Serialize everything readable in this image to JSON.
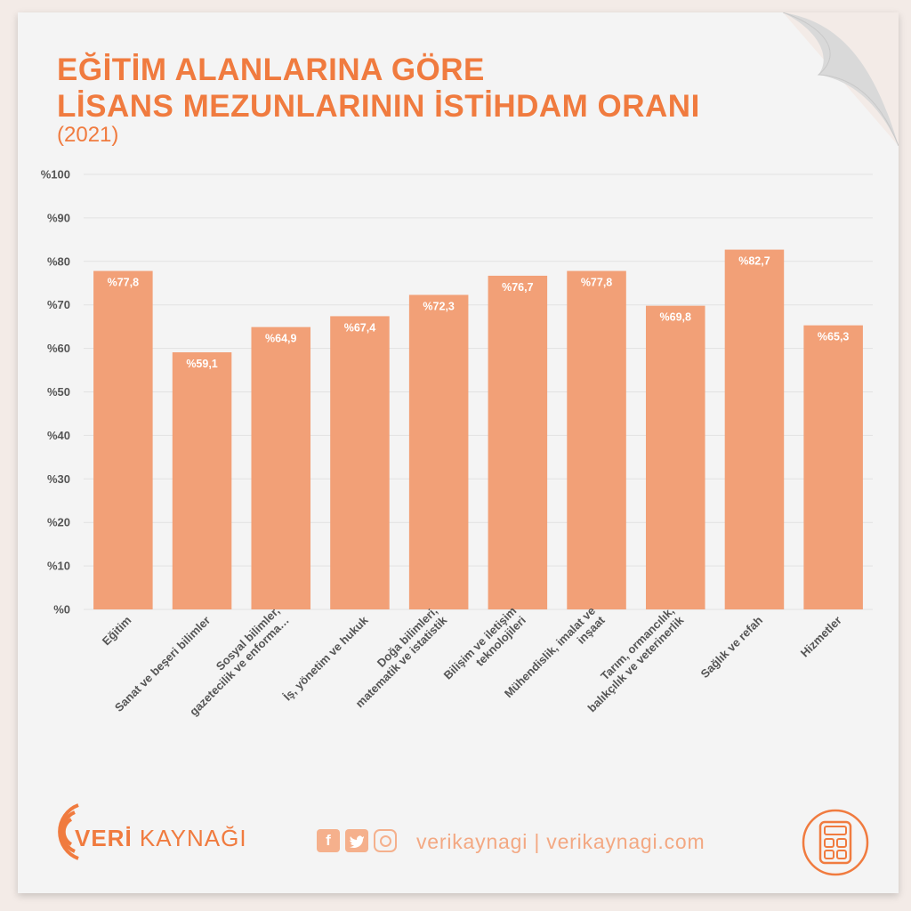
{
  "header": {
    "title_line1": "EĞİTİM ALANLARINA GÖRE",
    "title_line2": "LİSANS MEZUNLARININ İSTİHDAM ORANI",
    "subtitle": "(2021)"
  },
  "colors": {
    "accent": "#f07b3f",
    "bar": "#f2a077",
    "bar_label": "#ffffff",
    "axis_text": "#555555",
    "grid": "#e2e2e2"
  },
  "chart_data": {
    "type": "bar",
    "categories": [
      [
        "Eğitim"
      ],
      [
        "Sanat ve beşeri bilimler"
      ],
      [
        "Sosyal bilimler,",
        "gazetecilik ve enforma…"
      ],
      [
        "İş, yönetim ve hukuk"
      ],
      [
        "Doğa bilimleri,",
        "matematik ve istatistik"
      ],
      [
        "Bilişim ve iletişim",
        "teknolojileri"
      ],
      [
        "Mühendislik, imalat ve",
        "inşaat"
      ],
      [
        "Tarım, ormancılık,",
        "balıkçılık ve veterinerlik"
      ],
      [
        "Sağlık ve refah"
      ],
      [
        "Hizmetler"
      ]
    ],
    "values": [
      77.8,
      59.1,
      64.9,
      67.4,
      72.3,
      76.7,
      77.8,
      69.8,
      82.7,
      65.3
    ],
    "value_labels": [
      "%77,8",
      "%59,1",
      "%64,9",
      "%67,4",
      "%72,3",
      "%76,7",
      "%77,8",
      "%69,8",
      "%82,7",
      "%65,3"
    ],
    "y_ticks": [
      "%0",
      "%10",
      "%20",
      "%30",
      "%40",
      "%50",
      "%60",
      "%70",
      "%80",
      "%90",
      "%100"
    ],
    "ylim": [
      0,
      100
    ],
    "grid": true,
    "legend": "none"
  },
  "footer": {
    "brand_bold": "VERİ",
    "brand_rest": " KAYNAĞI",
    "social_icons": [
      "facebook-icon",
      "twitter-icon",
      "instagram-icon"
    ],
    "contact": "verikaynagi | verikaynagi.com",
    "logo_icon": "calculator-icon"
  }
}
